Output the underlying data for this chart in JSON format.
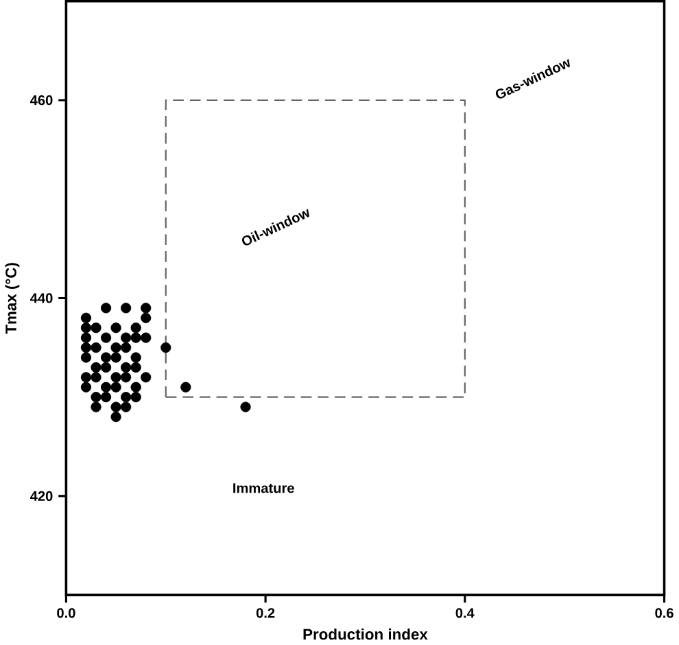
{
  "chart_data": {
    "type": "scatter",
    "xlabel": "Production index",
    "ylabel": "Tmax  (°C)",
    "xlim": [
      0,
      0.6
    ],
    "ylim": [
      410,
      470
    ],
    "xticks": [
      {
        "value": 0,
        "label": "0.0"
      },
      0.2,
      0.4,
      0.6
    ],
    "yticks": [
      420,
      440,
      460
    ],
    "series": [
      {
        "color": "#000000",
        "marker": "circle",
        "x": [
          0.04,
          0.06,
          0.08,
          0.02,
          0.03,
          0.05,
          0.07,
          0.08,
          0.02,
          0.04,
          0.06,
          0.07,
          0.02,
          0.03,
          0.05,
          0.06,
          0.08,
          0.02,
          0.04,
          0.05,
          0.07,
          0.02,
          0.03,
          0.04,
          0.06,
          0.07,
          0.02,
          0.03,
          0.05,
          0.06,
          0.08,
          0.02,
          0.04,
          0.05,
          0.06,
          0.03,
          0.04,
          0.07,
          0.07,
          0.03,
          0.05,
          0.06,
          0.05,
          0.1,
          0.12,
          0.18
        ],
        "values": [
          439,
          439,
          439,
          438,
          437,
          437,
          437,
          438,
          437,
          436,
          436,
          436,
          436,
          435,
          435,
          435,
          436,
          435,
          434,
          434,
          434,
          434,
          433,
          433,
          433,
          433,
          432,
          432,
          432,
          432,
          432,
          431,
          431,
          431,
          430,
          430,
          430,
          430,
          431,
          429,
          429,
          429,
          428,
          435,
          431,
          429
        ]
      },
      {
        "type": "line",
        "color": "#666666",
        "line_style": "dashed",
        "marker": "none",
        "x": [
          0.1,
          0.1,
          0.4,
          0.4
        ],
        "values": [
          430,
          460,
          460,
          430
        ]
      },
      {
        "type": "line",
        "color": "#666666",
        "line_style": "dashed",
        "marker": "none",
        "x": [
          0.1,
          0.4
        ],
        "values": [
          430,
          430
        ]
      }
    ],
    "annotations": [
      "Gas-window",
      "Oil-window",
      "Immature"
    ]
  }
}
